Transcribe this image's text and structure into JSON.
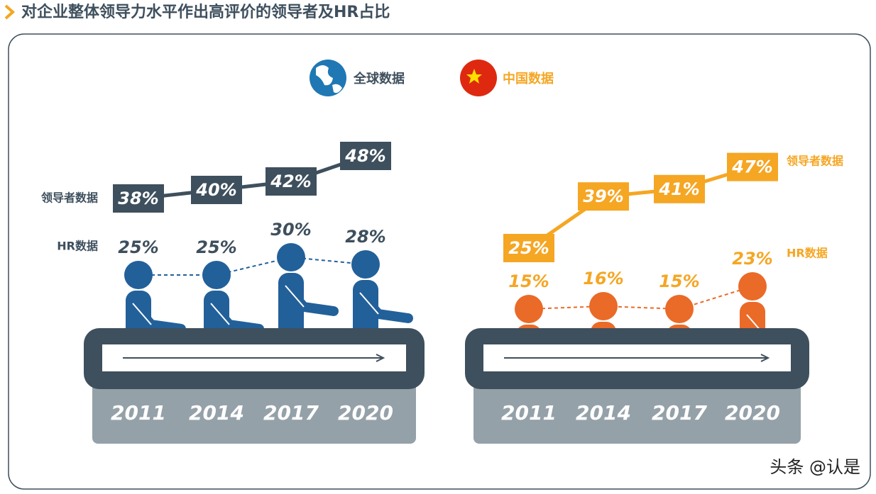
{
  "title": "对企业整体领导力水平作出高评价的领导者及HR占比",
  "chart_data": [
    {
      "type": "line",
      "title": "全球数据",
      "categories": [
        "2011",
        "2014",
        "2017",
        "2020"
      ],
      "series": [
        {
          "name": "领导者数据",
          "color": "#3e4f5d",
          "values": [
            38,
            40,
            42,
            48
          ],
          "value_labels": [
            "38%",
            "40%",
            "42%",
            "48%"
          ]
        },
        {
          "name": "HR数据",
          "color": "#22609a",
          "values": [
            25,
            25,
            30,
            28
          ],
          "value_labels": [
            "25%",
            "25%",
            "30%",
            "28%"
          ]
        }
      ]
    },
    {
      "type": "line",
      "title": "中国数据",
      "categories": [
        "2011",
        "2014",
        "2017",
        "2020"
      ],
      "series": [
        {
          "name": "领导者数据",
          "color": "#f5a623",
          "values": [
            25,
            39,
            41,
            47
          ],
          "value_labels": [
            "25%",
            "39%",
            "41%",
            "47%"
          ]
        },
        {
          "name": "HR数据",
          "color": "#ea6a28",
          "values": [
            15,
            16,
            15,
            23
          ],
          "value_labels": [
            "15%",
            "16%",
            "15%",
            "23%"
          ]
        }
      ]
    }
  ],
  "watermark": "头条 @认是"
}
